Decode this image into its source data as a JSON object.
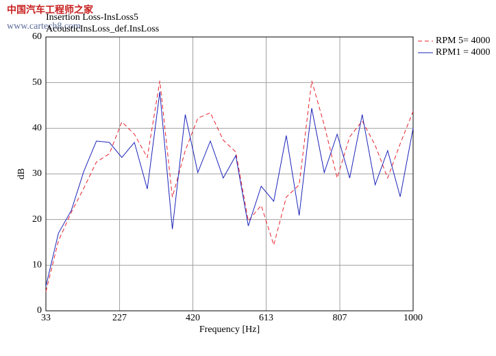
{
  "chart_data": {
    "type": "line",
    "titles": [
      "Insertion Loss-InsLoss5",
      "AcousticInsLoss_def.InsLoss"
    ],
    "watermark": [
      "中国汽车工程师之家",
      "www.cartech8.com"
    ],
    "x_label": "Frequency [Hz]",
    "y_label": "dB",
    "x": [
      33,
      66,
      100,
      133,
      166,
      200,
      233,
      266,
      300,
      333,
      366,
      400,
      433,
      466,
      500,
      533,
      566,
      600,
      633,
      666,
      700,
      733,
      766,
      800,
      833,
      866,
      900,
      933,
      966,
      1000
    ],
    "series": [
      {
        "name": "RPM 5= 4000",
        "color": "#e8202a",
        "dash": true,
        "values": [
          4.2,
          15.3,
          21.6,
          26.9,
          32.6,
          34.4,
          41.4,
          38.7,
          33.6,
          50.4,
          24.9,
          35.1,
          42.2,
          43.4,
          37.4,
          34.8,
          19.7,
          23.1,
          14.4,
          24.9,
          27.6,
          50.4,
          40.7,
          29.1,
          38.1,
          41.6,
          36.3,
          29.1,
          36.6,
          43.7
        ]
      },
      {
        "name": "RPM1 = 4000",
        "color": "#1a22b8",
        "dash": false,
        "values": [
          5.4,
          17,
          22,
          30.6,
          37.2,
          36.9,
          33.6,
          36.9,
          26.7,
          48,
          17.9,
          43,
          30.3,
          37.2,
          29.1,
          34,
          18.6,
          27.3,
          24,
          38.4,
          20.9,
          44.4,
          30.3,
          38.7,
          29.1,
          43,
          27.6,
          35.1,
          25,
          40
        ]
      }
    ],
    "xlim": [
      33,
      1000
    ],
    "xticks": [
      33,
      227,
      420,
      613,
      807,
      1000
    ],
    "ylim": [
      0,
      60
    ],
    "yticks": [
      0,
      10,
      20,
      30,
      40,
      50,
      60
    ],
    "grid": true,
    "legend": "right"
  }
}
